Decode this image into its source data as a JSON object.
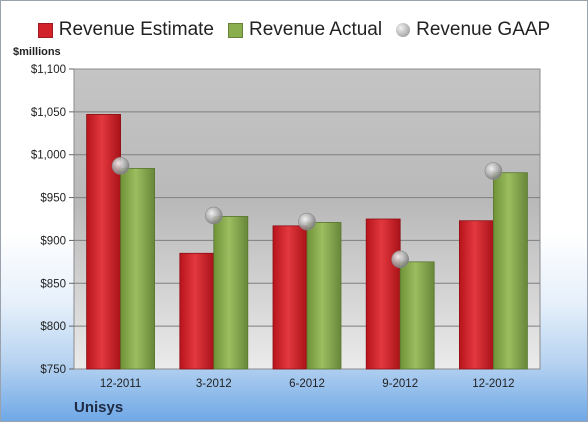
{
  "chart_data": {
    "type": "bar",
    "ylabel": "$millions",
    "ylim": [
      750,
      1100
    ],
    "yticks": [
      "$750",
      "$800",
      "$850",
      "$900",
      "$950",
      "$1,000",
      "$1,050",
      "$1,100"
    ],
    "categories": [
      "12-2011",
      "3-2012",
      "6-2012",
      "9-2012",
      "12-2012"
    ],
    "series": [
      {
        "name": "Revenue Estimate",
        "kind": "bar",
        "color": "#d2232a",
        "values": [
          1047,
          885,
          917,
          925,
          923
        ]
      },
      {
        "name": "Revenue Actual",
        "kind": "bar",
        "color": "#8aad4e",
        "values": [
          984,
          928,
          921,
          875,
          979
        ]
      },
      {
        "name": "Revenue GAAP",
        "kind": "marker",
        "color": "#b0b0b0",
        "values": [
          987,
          929,
          922,
          878,
          981
        ]
      }
    ],
    "legend_position": "top",
    "grid": true
  },
  "footer": {
    "company": "Unisys"
  }
}
